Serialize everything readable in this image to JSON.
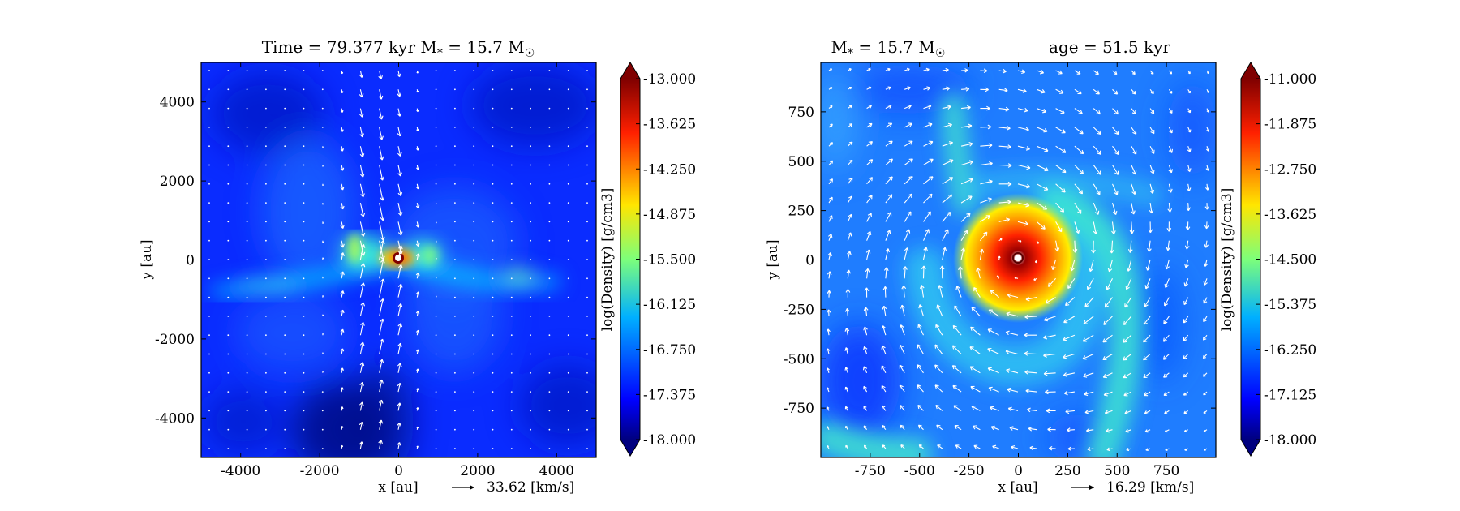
{
  "chart_data": [
    {
      "type": "heatmap",
      "title": "Time = 79.377 kyr   M",
      "title_sub": "*",
      "title_mid": " = 15.7 M",
      "title_sun": "☉",
      "xlabel": "x [au]",
      "ylabel": "y [au]",
      "xlim": [
        -5000,
        5000
      ],
      "ylim": [
        -5000,
        5000
      ],
      "xticks": [
        -4000,
        -2000,
        0,
        2000,
        4000
      ],
      "yticks": [
        -4000,
        -2000,
        0,
        2000,
        4000
      ],
      "xtick_labels": [
        "-4000",
        "-2000",
        "0",
        "2000",
        "4000"
      ],
      "ytick_labels": [
        "-4000",
        "-2000",
        "0",
        "2000",
        "4000"
      ],
      "vector_key": "33.62 [km/s]",
      "colorbar": {
        "label": "log(Density) [g/cm3]",
        "min": -18.0,
        "max": -13.0,
        "ticks": [
          -13.0,
          -13.625,
          -14.25,
          -14.875,
          -15.5,
          -16.125,
          -16.75,
          -17.375,
          -18.0
        ],
        "tick_labels": [
          "-13.000",
          "-13.625",
          "-14.250",
          "-14.875",
          "-15.500",
          "-16.125",
          "-16.750",
          "-17.375",
          "-18.000"
        ]
      },
      "colormap": "jet",
      "background": "#0a2cff"
    },
    {
      "type": "heatmap",
      "title": "M",
      "title_sub": "*",
      "title_mid": " = 15.7 M",
      "title_sun": "☉",
      "title_age": "age = 51.5 kyr",
      "xlabel": "x [au]",
      "ylabel": "y [au]",
      "xlim": [
        -1000,
        1000
      ],
      "ylim": [
        -1000,
        1000
      ],
      "xticks": [
        -750,
        -500,
        -250,
        0,
        250,
        500,
        750
      ],
      "yticks": [
        -750,
        -500,
        -250,
        0,
        250,
        500,
        750
      ],
      "xtick_labels": [
        "-750",
        "-500",
        "-250",
        "0",
        "250",
        "500",
        "750"
      ],
      "ytick_labels": [
        "-750",
        "-500",
        "-250",
        "0",
        "250",
        "500",
        "750"
      ],
      "vector_key": "16.29 [km/s]",
      "colorbar": {
        "label": "log(Density) [g/cm3]",
        "min": -18.0,
        "max": -11.0,
        "ticks": [
          -11.0,
          -11.875,
          -12.75,
          -13.625,
          -14.5,
          -15.375,
          -16.25,
          -17.125,
          -18.0
        ],
        "tick_labels": [
          "-11.000",
          "-11.875",
          "-12.750",
          "-13.625",
          "-14.500",
          "-15.375",
          "-16.250",
          "-17.125",
          "-18.000"
        ]
      },
      "colormap": "jet",
      "background": "#1f7dff"
    }
  ]
}
